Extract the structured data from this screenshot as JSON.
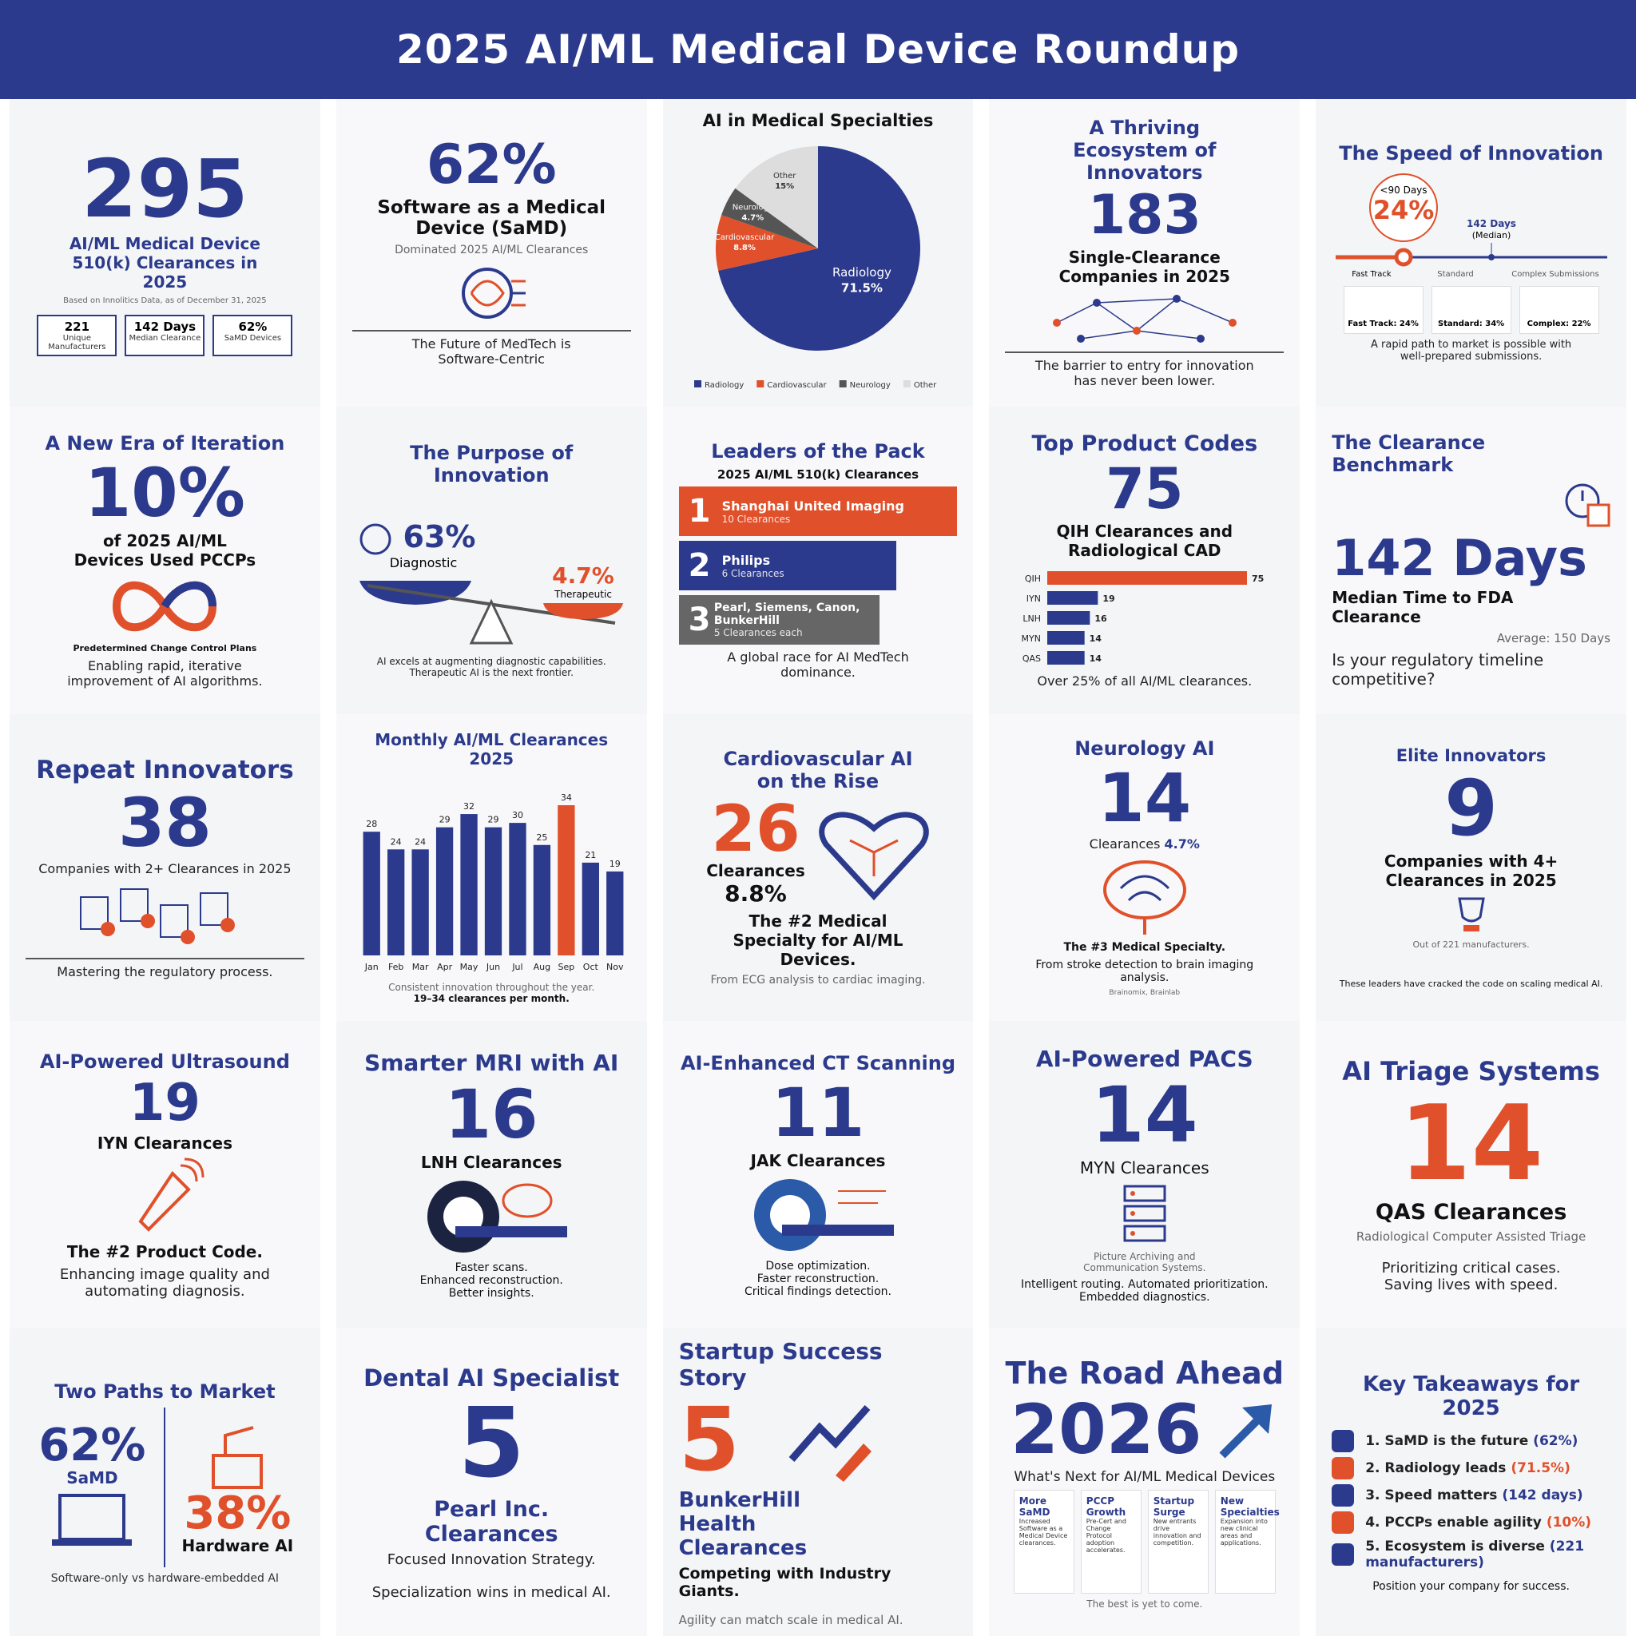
{
  "header": {
    "title": "2025 AI/ML Medical Device Roundup"
  },
  "overview": {
    "big": "295",
    "title": "AI/ML Medical Device 510(k) Clearances in 2025",
    "note": "Based on Innolitics Data, as of December 31, 2025",
    "stats": [
      {
        "value": "221",
        "label": "Unique Manufacturers"
      },
      {
        "value": "142 Days",
        "label": "Median Clearance"
      },
      {
        "value": "62%",
        "label": "SaMD Devices"
      }
    ]
  },
  "samd": {
    "big": "62%",
    "title": "Software as a Medical Device (SaMD)",
    "subtitle": "Dominated 2025 AI/ML Clearances",
    "footer": "The Future of MedTech is Software-Centric"
  },
  "ecosystem": {
    "title": "A Thriving Ecosystem of Innovators",
    "big": "183",
    "subtitle": "Single-Clearance Companies in 2025",
    "footer": "The barrier to entry for innovation has never been lower."
  },
  "speed": {
    "title": "The Speed of Innovation",
    "marker_top": "<90 Days",
    "marker_value": "24%",
    "median": "142 Days",
    "median_note": "(Median)",
    "stages": [
      "Fast Track",
      "Standard",
      "Complex Submissions"
    ],
    "boxes": [
      "Fast Track: 24%",
      "Standard: 34%",
      "Complex: 22%"
    ],
    "footer": "A rapid path to market is possible with well-prepared submissions."
  },
  "pccp": {
    "title": "A New Era of Iteration",
    "big": "10%",
    "subtitle": "of 2025 AI/ML Devices Used PCCPs",
    "caption": "Predetermined Change Control Plans",
    "footer": "Enabling rapid, iterative improvement of AI algorithms."
  },
  "purpose": {
    "title": "The Purpose of Innovation",
    "left_value": "63%",
    "left_label": "Diagnostic",
    "right_value": "4.7%",
    "right_label": "Therapeutic",
    "footer": "AI excels at augmenting diagnostic capabilities. Therapeutic AI is the next frontier."
  },
  "leaders": {
    "title": "Leaders of the Pack",
    "subtitle": "2025 AI/ML 510(k) Clearances",
    "ranks": [
      {
        "rank": "1",
        "name": "Shanghai United Imaging",
        "count": "10 Clearances"
      },
      {
        "rank": "2",
        "name": "Philips",
        "count": "6 Clearances"
      },
      {
        "rank": "3",
        "name": "Pearl, Siemens, Canon, BunkerHill",
        "count": "5 Clearances each"
      }
    ],
    "footer": "A global race for AI MedTech dominance."
  },
  "product_codes": {
    "big": "75",
    "subtitle": "QIH Clearances and Radiological CAD",
    "footer": "Over 25% of all AI/ML clearances."
  },
  "benchmark": {
    "title": "The Clearance Benchmark",
    "big": "142 Days",
    "subtitle": "Median Time to FDA Clearance",
    "note": "Average: 150 Days",
    "question": "Is your regulatory timeline competitive?"
  },
  "repeat": {
    "title": "Repeat Innovators",
    "big": "38",
    "subtitle": "Companies with 2+ Clearances in 2025",
    "footer": "Mastering the regulatory process."
  },
  "monthly": {
    "note": "Consistent innovation throughout the year.",
    "range": "19–34 clearances per month."
  },
  "cardio": {
    "title": "Cardiovascular AI on the Rise",
    "big": "26",
    "unit": "Clearances",
    "pct": "8.8%",
    "subtitle": "The #2 Medical Specialty for AI/ML Devices.",
    "footer": "From ECG analysis to cardiac imaging."
  },
  "neuro": {
    "title": "Neurology AI",
    "big": "14",
    "unit": "Clearances",
    "pct": "4.7%",
    "subtitle": "The #3 Medical Specialty.",
    "footer": "From stroke detection to brain imaging analysis.",
    "note": "Brainomix, Brainlab"
  },
  "elite": {
    "title": "Elite Innovators",
    "big": "9",
    "subtitle": "Companies with 4+ Clearances in 2025",
    "note": "Out of 221 manufacturers.",
    "footer": "These leaders have cracked the code on scaling medical AI."
  },
  "ultrasound": {
    "title": "AI-Powered Ultrasound",
    "big": "19",
    "subtitle": "IYN Clearances",
    "lead": "The #2 Product Code.",
    "footer": "Enhancing image quality and automating diagnosis."
  },
  "mri": {
    "title": "Smarter MRI with AI",
    "big": "16",
    "subtitle": "LNH Clearances",
    "lines": [
      "Faster scans.",
      "Enhanced reconstruction.",
      "Better insights."
    ]
  },
  "ct": {
    "title": "AI-Enhanced CT Scanning",
    "big": "11",
    "subtitle": "JAK Clearances",
    "lines": [
      "Dose optimization.",
      "Faster reconstruction.",
      "Critical findings detection."
    ]
  },
  "pacs": {
    "title": "AI-Powered PACS",
    "big": "14",
    "subtitle": "MYN Clearances",
    "note": "Picture Archiving and Communication Systems.",
    "footer": "Intelligent routing. Automated prioritization. Embedded diagnostics."
  },
  "triage": {
    "title": "AI Triage Systems",
    "big": "14",
    "subtitle": "QAS Clearances",
    "note": "Radiological Computer Assisted Triage",
    "footer": "Prioritizing critical cases. Saving lives with speed."
  },
  "paths": {
    "title": "Two Paths to Market",
    "left_value": "62%",
    "left_label": "SaMD",
    "right_value": "38%",
    "right_label": "Hardware AI",
    "footer": "Software-only vs hardware-embedded AI"
  },
  "dental": {
    "title": "Dental AI Specialist",
    "big": "5",
    "subtitle": "Pearl Inc. Clearances",
    "lead": "Focused Innovation Strategy.",
    "footer": "Specialization wins in medical AI."
  },
  "startup": {
    "title": "Startup Success Story",
    "big": "5",
    "subtitle": "BunkerHill Health Clearances",
    "lead": "Competing with Industry Giants.",
    "footer": "Agility can match scale in medical AI."
  },
  "road_ahead": {
    "title": "The Road Ahead",
    "big": "2026",
    "subtitle": "What's Next for AI/ML Medical Devices",
    "items": [
      {
        "title": "More SaMD",
        "text": "Increased Software as a Medical Device clearances."
      },
      {
        "title": "PCCP Growth",
        "text": "Pre-Cert and Change Protocol adoption accelerates."
      },
      {
        "title": "Startup Surge",
        "text": "New entrants drive innovation and competition."
      },
      {
        "title": "New Specialties",
        "text": "Expansion into new clinical areas and applications."
      }
    ],
    "footer": "The best is yet to come."
  },
  "takeaways": {
    "title": "Key Takeaways for 2025",
    "items": [
      {
        "text": "1. SaMD is the future",
        "highlight": "(62%)"
      },
      {
        "text": "2. Radiology leads",
        "highlight": "(71.5%)"
      },
      {
        "text": "3. Speed matters",
        "highlight": "(142 days)"
      },
      {
        "text": "4. PCCPs enable agility",
        "highlight": "(10%)"
      },
      {
        "text": "5. Ecosystem is diverse",
        "highlight": "(221 manufacturers)"
      }
    ],
    "footer": "Position your company for success."
  },
  "chart_data": [
    {
      "type": "pie",
      "title": "AI in Medical Specialties",
      "categories": [
        "Radiology",
        "Cardiovascular",
        "Neurology",
        "Other"
      ],
      "values": [
        71.5,
        8.8,
        4.7,
        15
      ],
      "value_labels": [
        "71.5%",
        "8.8%",
        "4.7%",
        "15%"
      ],
      "colors": [
        "#2b3a8c",
        "#e0502a",
        "#555555",
        "#dddddd"
      ],
      "legend": "bottom"
    },
    {
      "type": "hbar",
      "title": "Top Product Codes",
      "categories": [
        "QIH",
        "IYN",
        "LNH",
        "MYN",
        "QAS"
      ],
      "values": [
        75,
        19,
        16,
        14,
        14
      ],
      "colors": [
        "#e0502a",
        "#2b3a8c",
        "#2b3a8c",
        "#2b3a8c",
        "#2b3a8c"
      ]
    },
    {
      "type": "bar",
      "title": "Monthly AI/ML Clearances 2025",
      "categories": [
        "Jan",
        "Feb",
        "Mar",
        "Apr",
        "May",
        "Jun",
        "Jul",
        "Aug",
        "Sep",
        "Oct",
        "Nov"
      ],
      "values": [
        28,
        24,
        24,
        29,
        32,
        29,
        30,
        25,
        34,
        21,
        19
      ],
      "colors": [
        "#2b3a8c",
        "#2b3a8c",
        "#2b3a8c",
        "#2b3a8c",
        "#2b3a8c",
        "#2b3a8c",
        "#2b3a8c",
        "#2b3a8c",
        "#e0502a",
        "#2b3a8c",
        "#2b3a8c"
      ]
    }
  ]
}
